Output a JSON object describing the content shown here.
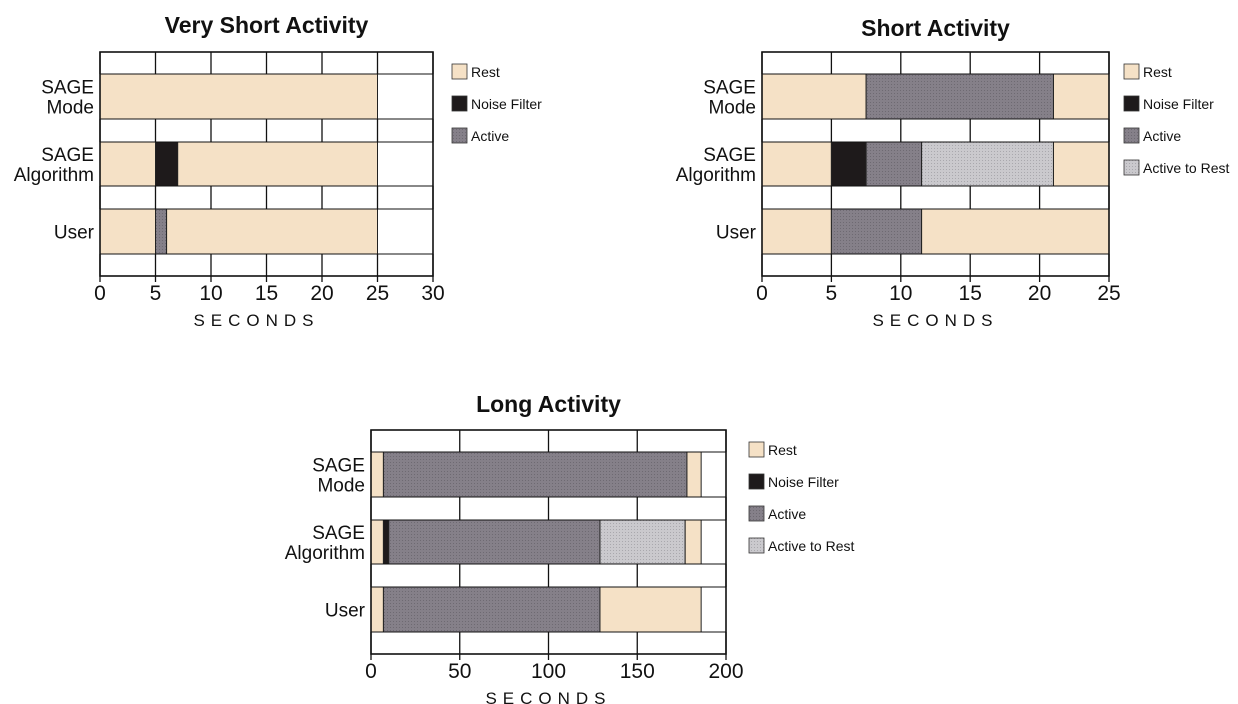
{
  "figure": {
    "legend": {
      "items": [
        {
          "key": "rest",
          "label": "Rest"
        },
        {
          "key": "noise",
          "label": "Noise Filter"
        },
        {
          "key": "active",
          "label": "Active"
        },
        {
          "key": "a2r",
          "label": "Active to Rest"
        }
      ]
    },
    "colors": {
      "rest": "#f5e1c6",
      "noise": "#1e1a1b",
      "active": "#858089",
      "a2r": "#cac9cd",
      "axis": "#111111"
    }
  },
  "chart_data": [
    {
      "type": "bar",
      "orientation": "horizontal-stacked",
      "title": "Very Short Activity",
      "xlabel": "SECONDS",
      "xlim": [
        0,
        30
      ],
      "xticks": [
        0,
        5,
        10,
        15,
        20,
        25,
        30
      ],
      "legend_position": "right",
      "legend_items": [
        "Rest",
        "Noise Filter",
        "Active"
      ],
      "categories": [
        {
          "label_lines": [
            "SAGE",
            "Mode"
          ],
          "segments": [
            {
              "state": "Rest",
              "start": 0,
              "end": 25
            }
          ]
        },
        {
          "label_lines": [
            "SAGE",
            "Algorithm"
          ],
          "segments": [
            {
              "state": "Rest",
              "start": 0,
              "end": 5
            },
            {
              "state": "Noise Filter",
              "start": 5,
              "end": 7
            },
            {
              "state": "Rest",
              "start": 7,
              "end": 25
            }
          ]
        },
        {
          "label_lines": [
            "User"
          ],
          "segments": [
            {
              "state": "Rest",
              "start": 0,
              "end": 5
            },
            {
              "state": "Active",
              "start": 5,
              "end": 6
            },
            {
              "state": "Rest",
              "start": 6,
              "end": 25
            }
          ]
        }
      ]
    },
    {
      "type": "bar",
      "orientation": "horizontal-stacked",
      "title": "Short Activity",
      "xlabel": "SECONDS",
      "xlim": [
        0,
        25
      ],
      "xticks": [
        0,
        5,
        10,
        15,
        20,
        25
      ],
      "legend_position": "right",
      "legend_items": [
        "Rest",
        "Noise Filter",
        "Active",
        "Active to Rest"
      ],
      "categories": [
        {
          "label_lines": [
            "SAGE",
            "Mode"
          ],
          "segments": [
            {
              "state": "Rest",
              "start": 0,
              "end": 7.5
            },
            {
              "state": "Active",
              "start": 7.5,
              "end": 21
            },
            {
              "state": "Rest",
              "start": 21,
              "end": 25
            }
          ]
        },
        {
          "label_lines": [
            "SAGE",
            "Algorithm"
          ],
          "segments": [
            {
              "state": "Rest",
              "start": 0,
              "end": 5
            },
            {
              "state": "Noise Filter",
              "start": 5,
              "end": 7.5
            },
            {
              "state": "Active",
              "start": 7.5,
              "end": 11.5
            },
            {
              "state": "Active to Rest",
              "start": 11.5,
              "end": 21
            },
            {
              "state": "Rest",
              "start": 21,
              "end": 25
            }
          ]
        },
        {
          "label_lines": [
            "User"
          ],
          "segments": [
            {
              "state": "Rest",
              "start": 0,
              "end": 5
            },
            {
              "state": "Active",
              "start": 5,
              "end": 11.5
            },
            {
              "state": "Rest",
              "start": 11.5,
              "end": 25
            }
          ]
        }
      ]
    },
    {
      "type": "bar",
      "orientation": "horizontal-stacked",
      "title": "Long Activity",
      "xlabel": "SECONDS",
      "xlim": [
        0,
        200
      ],
      "xticks": [
        0,
        50,
        100,
        150,
        200
      ],
      "legend_position": "right",
      "legend_items": [
        "Rest",
        "Noise Filter",
        "Active",
        "Active to Rest"
      ],
      "categories": [
        {
          "label_lines": [
            "SAGE",
            "Mode"
          ],
          "segments": [
            {
              "state": "Rest",
              "start": 0,
              "end": 7
            },
            {
              "state": "Active",
              "start": 7,
              "end": 178
            },
            {
              "state": "Rest",
              "start": 178,
              "end": 186
            }
          ]
        },
        {
          "label_lines": [
            "SAGE",
            "Algorithm"
          ],
          "segments": [
            {
              "state": "Rest",
              "start": 0,
              "end": 7
            },
            {
              "state": "Noise Filter",
              "start": 7,
              "end": 10
            },
            {
              "state": "Active",
              "start": 10,
              "end": 129
            },
            {
              "state": "Active to Rest",
              "start": 129,
              "end": 177
            },
            {
              "state": "Rest",
              "start": 177,
              "end": 186
            }
          ]
        },
        {
          "label_lines": [
            "User"
          ],
          "segments": [
            {
              "state": "Rest",
              "start": 0,
              "end": 7
            },
            {
              "state": "Active",
              "start": 7,
              "end": 129
            },
            {
              "state": "Rest",
              "start": 129,
              "end": 186
            }
          ]
        }
      ]
    }
  ]
}
